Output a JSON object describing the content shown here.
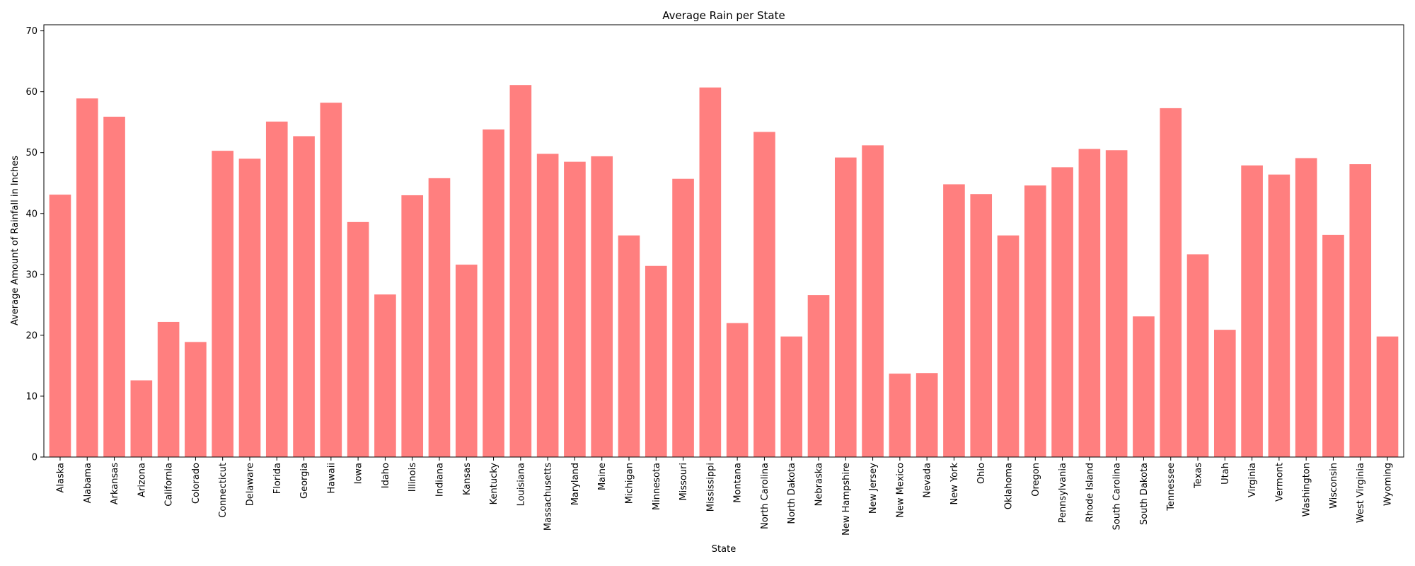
{
  "chart_data": {
    "type": "bar",
    "title": "Average Rain per State",
    "xlabel": "State",
    "ylabel": "Average Amount of Rainfall in Inches",
    "ylim": [
      0,
      71
    ],
    "yticks": [
      0,
      10,
      20,
      30,
      40,
      50,
      60,
      70
    ],
    "grid": false,
    "bar_color": "#ff7f7f",
    "categories": [
      "Alaska",
      "Alabama",
      "Arkansas",
      "Arizona",
      "California",
      "Colorado",
      "Connecticut",
      "Delaware",
      "Florida",
      "Georgia",
      "Hawaii",
      "Iowa",
      "Idaho",
      "Illinois",
      "Indiana",
      "Kansas",
      "Kentucky",
      "Louisiana",
      "Massachusetts",
      "Maryland",
      "Maine",
      "Michigan",
      "Minnesota",
      "Missouri",
      "Mississippi",
      "Montana",
      "North Carolina",
      "North Dakota",
      "Nebraska",
      "New Hampshire",
      "New Jersey",
      "New Mexico",
      "Nevada",
      "New York",
      "Ohio",
      "Oklahoma",
      "Oregon",
      "Pennsylvania",
      "Rhode Island",
      "South Carolina",
      "South Dakota",
      "Tennessee",
      "Texas",
      "Utah",
      "Virginia",
      "Vermont",
      "Washington",
      "Wisconsin",
      "West Virginia",
      "Wyoming"
    ],
    "values": [
      43.1,
      58.9,
      55.9,
      12.6,
      22.2,
      18.9,
      50.3,
      49.0,
      55.1,
      52.7,
      58.2,
      38.6,
      26.7,
      43.0,
      45.8,
      31.6,
      53.8,
      61.1,
      49.8,
      48.5,
      49.4,
      36.4,
      31.4,
      45.7,
      60.7,
      22.0,
      53.4,
      19.8,
      26.6,
      49.2,
      51.2,
      13.7,
      13.8,
      44.8,
      43.2,
      36.4,
      44.6,
      47.6,
      50.6,
      50.4,
      23.1,
      57.3,
      33.3,
      20.9,
      47.9,
      46.4,
      49.1,
      36.5,
      48.1,
      19.8
    ]
  }
}
